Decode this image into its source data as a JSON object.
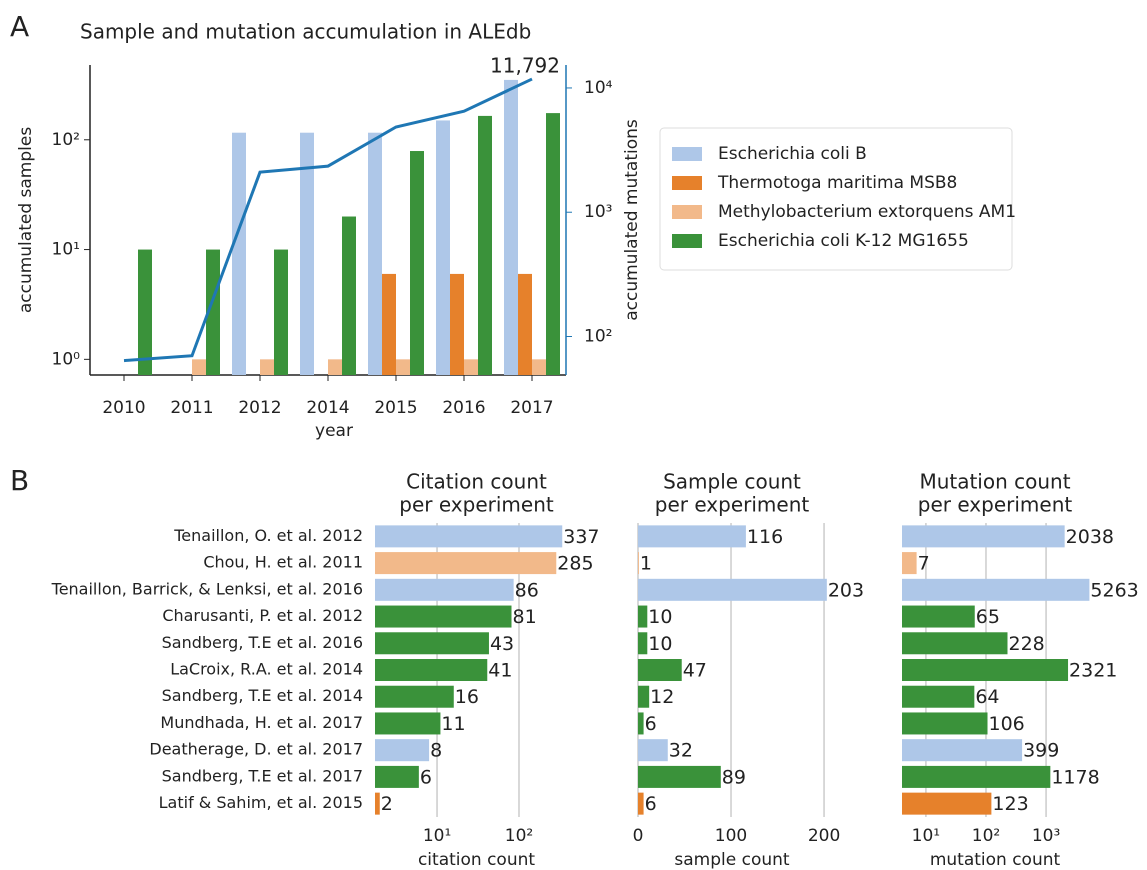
{
  "panel_labels": [
    "A",
    "B"
  ],
  "chart_data": [
    {
      "type": "bar",
      "title": "Sample and mutation accumulation in ALEdb",
      "xlabel": "year",
      "ylabel": "accumulated samples",
      "y2label": "accumulated mutations",
      "y2color": "#1f77b4",
      "categories": [
        "2010",
        "2011",
        "2012",
        "2014",
        "2015",
        "2016",
        "2017"
      ],
      "series": [
        {
          "name": "Escherichia coli B",
          "color": "#aec7e8",
          "values": [
            null,
            null,
            116,
            116,
            116,
            150,
            351
          ]
        },
        {
          "name": "Thermotoga maritima MSB8",
          "color": "#e6812b",
          "values": [
            null,
            null,
            null,
            null,
            6,
            6,
            6
          ]
        },
        {
          "name": "Methylobacterium extorquens AM1",
          "color": "#f2b98a",
          "values": [
            null,
            1,
            1,
            1,
            1,
            1,
            1
          ]
        },
        {
          "name": "Escherichia coli K-12 MG1655",
          "color": "#3a923a",
          "values": [
            10,
            10,
            10,
            20,
            79,
            165,
            175
          ]
        },
        {
          "type": "line",
          "axis": "y2",
          "color": "#1f77b4",
          "values": [
            64,
            70,
            2100,
            2350,
            4850,
            6500,
            11792
          ],
          "value_labels": [
            null,
            null,
            null,
            null,
            null,
            null,
            "11,792"
          ]
        }
      ],
      "ylog": true,
      "ylim": [
        0.72,
        480
      ],
      "yticks": [
        {
          "value": 1,
          "label": "10⁰"
        },
        {
          "value": 10,
          "label": "10¹"
        },
        {
          "value": 100,
          "label": "10²"
        }
      ],
      "y2log": true,
      "y2lim": [
        49,
        15300
      ],
      "y2ticks": [
        {
          "value": 100,
          "label": "10²"
        },
        {
          "value": 1000,
          "label": "10³"
        },
        {
          "value": 10000,
          "label": "10⁴"
        }
      ],
      "legend": "right"
    },
    {
      "type": "barh",
      "title": [
        "Citation count",
        "per experiment"
      ],
      "xlabel": "citation count",
      "categories": [
        "Tenaillon, O. et al. 2012",
        "Chou, H. et al. 2011",
        "Tenaillon, Barrick, & Lenksi, et al. 2016",
        "Charusanti, P. et al. 2012",
        "Sandberg, T.E et al. 2016",
        "LaCroix, R.A. et al. 2014",
        "Sandberg, T.E et al. 2014",
        "Mundhada, H. et al. 2017",
        "Deatherage, D. et al. 2017",
        "Sandberg, T.E et al. 2017",
        "Latif & Sahim, et al. 2015"
      ],
      "colors": [
        "#aec7e8",
        "#f2b98a",
        "#aec7e8",
        "#3a923a",
        "#3a923a",
        "#3a923a",
        "#3a923a",
        "#3a923a",
        "#aec7e8",
        "#3a923a",
        "#e6812b"
      ],
      "values": [
        337,
        285,
        86,
        81,
        43,
        41,
        16,
        11,
        8,
        6,
        2
      ],
      "xlog": true,
      "xlim": [
        1.75,
        735
      ],
      "xticks": [
        {
          "value": 10,
          "label": "10¹"
        },
        {
          "value": 100,
          "label": "10²"
        }
      ],
      "grid": true
    },
    {
      "type": "barh",
      "title": [
        "Sample count",
        "per experiment"
      ],
      "xlabel": "sample count",
      "colors": [
        "#aec7e8",
        "#f2b98a",
        "#aec7e8",
        "#3a923a",
        "#3a923a",
        "#3a923a",
        "#3a923a",
        "#3a923a",
        "#aec7e8",
        "#3a923a",
        "#e6812b"
      ],
      "values": [
        116,
        1,
        203,
        10,
        10,
        47,
        12,
        6,
        32,
        89,
        6
      ],
      "xlog": false,
      "xlim": [
        0,
        215
      ],
      "xticks": [
        0,
        100,
        200
      ],
      "grid": true
    },
    {
      "type": "barh",
      "title": [
        "Mutation count",
        "per experiment"
      ],
      "xlabel": "mutation count",
      "colors": [
        "#aec7e8",
        "#f2b98a",
        "#aec7e8",
        "#3a923a",
        "#3a923a",
        "#3a923a",
        "#3a923a",
        "#3a923a",
        "#aec7e8",
        "#3a923a",
        "#e6812b"
      ],
      "values": [
        2038,
        7,
        5263,
        65,
        228,
        2321,
        64,
        106,
        399,
        1178,
        123
      ],
      "xlog": true,
      "xlim": [
        4,
        7900
      ],
      "xticks": [
        {
          "value": 10,
          "label": "10¹"
        },
        {
          "value": 100,
          "label": "10²"
        },
        {
          "value": 1000,
          "label": "10³"
        }
      ],
      "grid": true
    }
  ]
}
